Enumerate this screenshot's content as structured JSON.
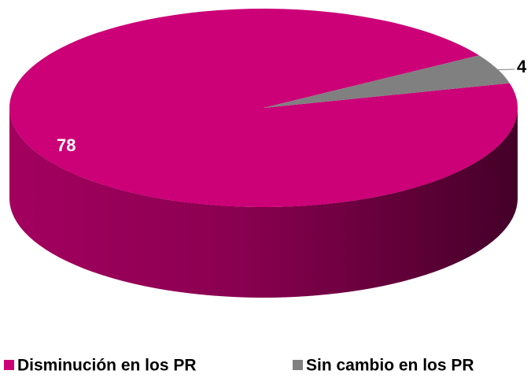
{
  "chart_data": {
    "type": "pie",
    "categories": [
      "Disminución en los PR",
      "Sin cambio en los PR"
    ],
    "values": [
      78,
      4
    ],
    "colors": [
      "#cc0077",
      "#808080"
    ],
    "legend": "bottom"
  }
}
